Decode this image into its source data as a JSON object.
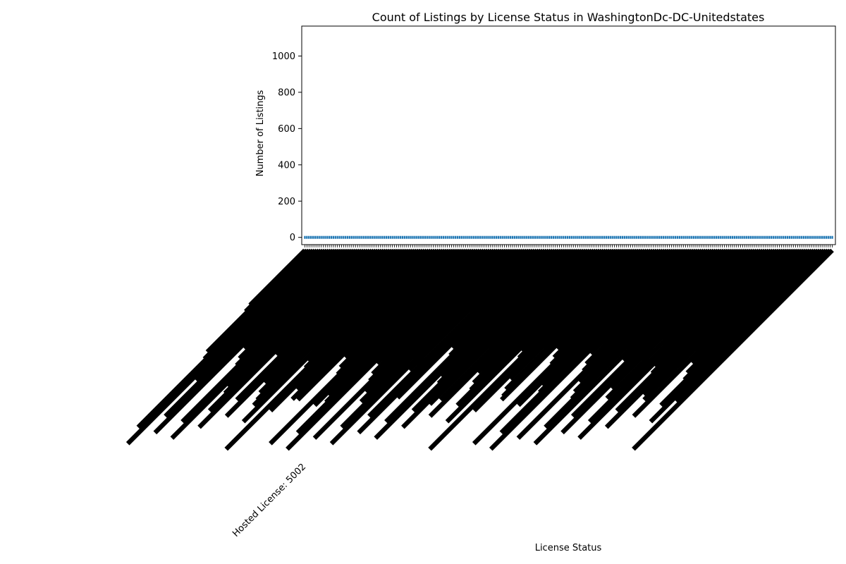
{
  "chart_data": {
    "type": "bar",
    "title": "Count of Listings by License Status in WashingtonDc-DC-Unitedstates",
    "xlabel": "License Status",
    "ylabel": "Number of Listings",
    "ylim": [
      -40,
      1165
    ],
    "yticks": [
      0,
      200,
      400,
      600,
      800,
      1000
    ],
    "grid": false,
    "category_label_rotation": "rotated 45 degrees, overlapping (illegible)",
    "legible_category_fragment": "Hosted License: 5002",
    "category_count_approx": 260,
    "bar_value_estimate": 0,
    "values_note": "Category names illegible; every bar is drawn at or near zero, axis extends to ~1165.",
    "bar_color": "#1f77b4"
  }
}
